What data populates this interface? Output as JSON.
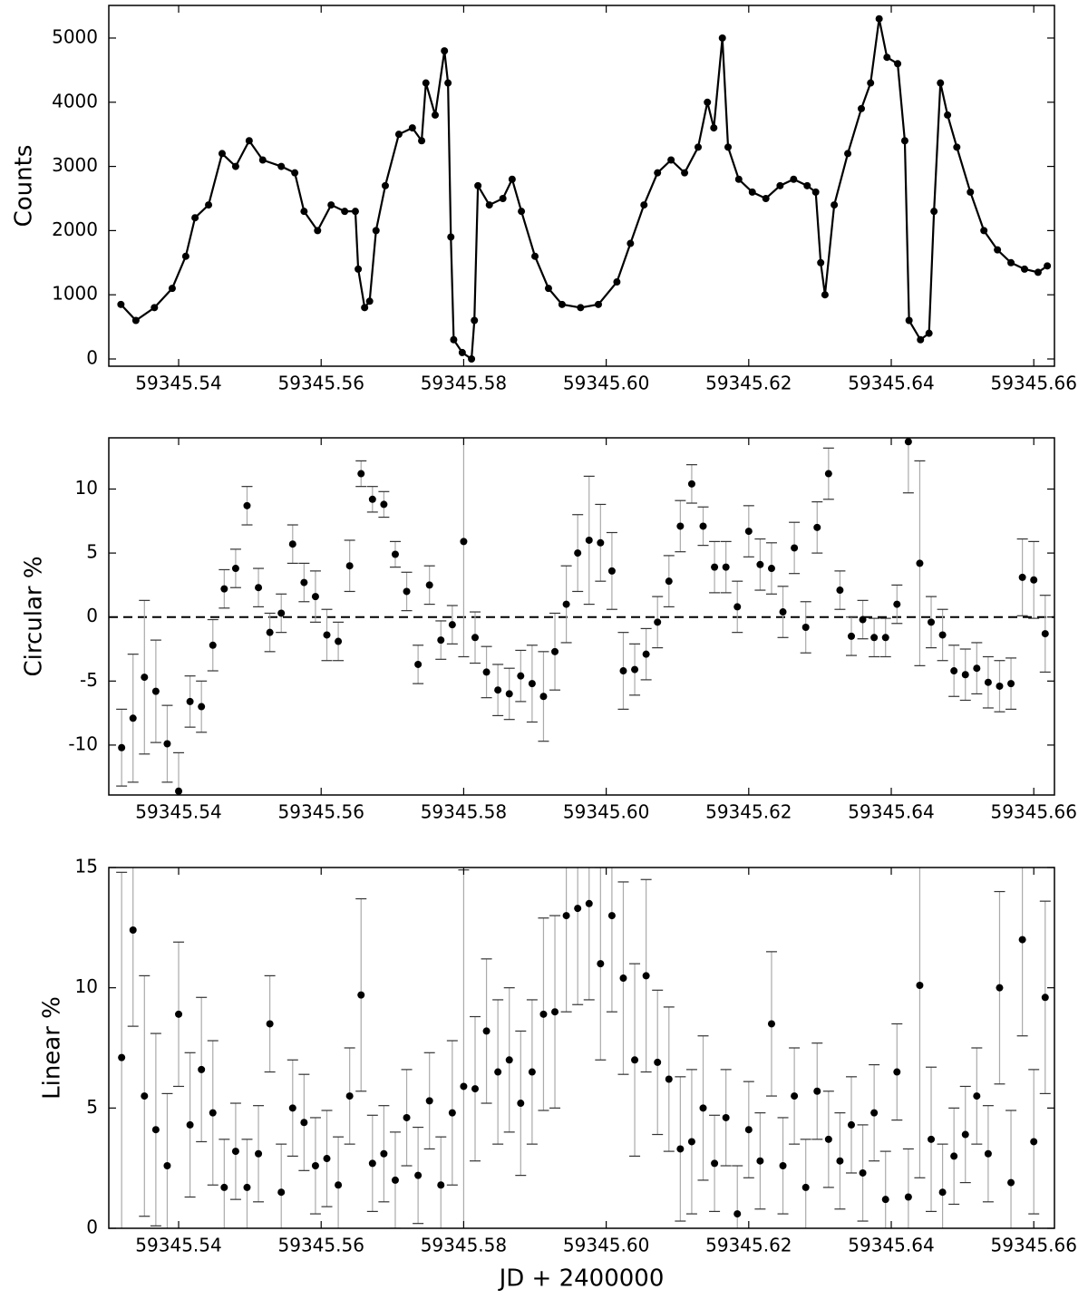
{
  "chart_data": [
    {
      "type": "line",
      "ylabel": "Counts",
      "color": "#000000",
      "x": [
        59345.5319,
        59345.534,
        59345.5366,
        59345.5391,
        59345.541,
        59345.5423,
        59345.5442,
        59345.5461,
        59345.548,
        59345.5499,
        59345.5518,
        59345.5544,
        59345.5563,
        59345.5576,
        59345.5595,
        59345.5614,
        59345.5633,
        59345.5648,
        59345.5652,
        59345.5661,
        59345.5668,
        59345.5677,
        59345.569,
        59345.5709,
        59345.5728,
        59345.5741,
        59345.5747,
        59345.576,
        59345.5773,
        59345.5778,
        59345.5782,
        59345.5786,
        59345.5798,
        59345.5811,
        59345.5815,
        59345.582,
        59345.5836,
        59345.5855,
        59345.5868,
        59345.5881,
        59345.59,
        59345.5919,
        59345.5938,
        59345.5964,
        59345.5989,
        59345.6015,
        59345.6034,
        59345.6053,
        59345.6072,
        59345.6091,
        59345.611,
        59345.6129,
        59345.6142,
        59345.6151,
        59345.6163,
        59345.6171,
        59345.6186,
        59345.6205,
        59345.6224,
        59345.6244,
        59345.6263,
        59345.6282,
        59345.6294,
        59345.6301,
        59345.6307,
        59345.632,
        59345.6339,
        59345.6358,
        59345.6371,
        59345.6383,
        59345.6394,
        59345.6409,
        59345.6419,
        59345.6425,
        59345.6441,
        59345.6453,
        59345.646,
        59345.6469,
        59345.6479,
        59345.6492,
        59345.6511,
        59345.653,
        59345.6549,
        59345.6568,
        59345.6587,
        59345.6606,
        59345.6619
      ],
      "values": [
        850,
        600,
        800,
        1100,
        1600,
        2200,
        2400,
        3200,
        3000,
        3400,
        3100,
        3000,
        2900,
        2300,
        2000,
        2400,
        2300,
        2300,
        1400,
        800,
        900,
        2000,
        2700,
        3500,
        3600,
        3400,
        4300,
        3800,
        4800,
        4300,
        1900,
        300,
        100,
        0,
        600,
        2700,
        2400,
        2500,
        2800,
        2300,
        1600,
        1100,
        850,
        800,
        850,
        1200,
        1800,
        2400,
        2900,
        3100,
        2900,
        3300,
        4000,
        3600,
        5000,
        3300,
        2800,
        2600,
        2500,
        2700,
        2800,
        2700,
        2600,
        1500,
        1000,
        2400,
        3200,
        3900,
        4300,
        5300,
        4700,
        4600,
        3400,
        600,
        300,
        400,
        2300,
        4300,
        3800,
        3300,
        2600,
        2000,
        1700,
        1500,
        1400,
        1350,
        1450
      ],
      "xlim": [
        59345.5302,
        59345.6629
      ],
      "xticks": [
        59345.54,
        59345.56,
        59345.58,
        {
          "value": 59345.6,
          "label": "59345.60"
        },
        59345.62,
        59345.64,
        59345.66
      ],
      "ylim": [
        -113,
        5508
      ],
      "yticks": [
        0,
        1000,
        2000,
        3000,
        4000,
        5000
      ]
    },
    {
      "type": "errorbar",
      "ylabel": "Circular %",
      "color": "#000000",
      "error_color": "#aaaaaa",
      "hline": 0,
      "x": [
        59345.532,
        59345.5336,
        59345.5352,
        59345.5368,
        59345.5384,
        59345.54,
        59345.5416,
        59345.5432,
        59345.5448,
        59345.5464,
        59345.548,
        59345.5496,
        59345.5512,
        59345.5528,
        59345.5544,
        59345.556,
        59345.5576,
        59345.5592,
        59345.5608,
        59345.5624,
        59345.564,
        59345.5656,
        59345.5672,
        59345.5688,
        59345.5704,
        59345.572,
        59345.5736,
        59345.5752,
        59345.5768,
        59345.5784,
        59345.58,
        59345.5816,
        59345.5832,
        59345.5848,
        59345.5864,
        59345.588,
        59345.5896,
        59345.5912,
        59345.5928,
        59345.5944,
        59345.596,
        59345.5976,
        59345.5992,
        59345.6008,
        59345.6024,
        59345.604,
        59345.6056,
        59345.6072,
        59345.6088,
        59345.6104,
        59345.612,
        59345.6136,
        59345.6152,
        59345.6168,
        59345.6184,
        59345.62,
        59345.6216,
        59345.6232,
        59345.6248,
        59345.6264,
        59345.628,
        59345.6296,
        59345.6312,
        59345.6328,
        59345.6344,
        59345.636,
        59345.6376,
        59345.6392,
        59345.6408,
        59345.6424,
        59345.644,
        59345.6456,
        59345.6472,
        59345.6488,
        59345.6504,
        59345.652,
        59345.6536,
        59345.6552,
        59345.6568,
        59345.6584,
        59345.66,
        59345.6616
      ],
      "values": [
        -10.2,
        -7.9,
        -4.7,
        -5.8,
        -9.9,
        -13.6,
        -6.6,
        -7.0,
        -2.2,
        2.2,
        3.8,
        8.7,
        2.3,
        -1.2,
        0.3,
        5.7,
        2.7,
        1.6,
        -1.4,
        -1.9,
        4.0,
        11.2,
        9.2,
        8.8,
        4.9,
        2.0,
        -3.7,
        2.5,
        -1.8,
        -0.6,
        5.9,
        -1.6,
        -4.3,
        -5.7,
        -6.0,
        -4.6,
        -5.2,
        -6.2,
        -2.7,
        1.0,
        5.0,
        6.0,
        5.8,
        3.6,
        -4.2,
        -4.1,
        -2.9,
        -0.4,
        2.8,
        7.1,
        10.4,
        7.1,
        3.9,
        3.9,
        0.8,
        6.7,
        4.1,
        3.8,
        0.4,
        5.4,
        -0.8,
        7.0,
        11.2,
        2.1,
        -1.5,
        -0.2,
        -1.6,
        -1.6,
        1.0,
        13.7,
        4.2,
        -0.4,
        -1.4,
        -4.2,
        -4.5,
        -4.0,
        -5.1,
        -5.4,
        -5.2,
        3.1,
        2.9,
        -1.3
      ],
      "errors": [
        3,
        5,
        6,
        4,
        3,
        3,
        2,
        2,
        2,
        1.5,
        1.5,
        1.5,
        1.5,
        1.5,
        1.5,
        1.5,
        1.5,
        2,
        2,
        1.5,
        2,
        1,
        1,
        1,
        1,
        1.5,
        1.5,
        1.5,
        1.5,
        1.5,
        9,
        2,
        2,
        2,
        2,
        2,
        3,
        3.5,
        3,
        3,
        3,
        5,
        3,
        3,
        3,
        2,
        2,
        2,
        2,
        2,
        1.5,
        1.5,
        2,
        2,
        2,
        2,
        2,
        2,
        2,
        2,
        2,
        2,
        2,
        1.5,
        1.5,
        1.5,
        1.5,
        1.5,
        1.5,
        4,
        8,
        2,
        2,
        2,
        2,
        2,
        2,
        2,
        2,
        3,
        3,
        3
      ],
      "xlim": [
        59345.5302,
        59345.6629
      ],
      "xticks": [
        59345.54,
        59345.56,
        59345.58,
        {
          "value": 59345.6,
          "label": "59345.60"
        },
        59345.62,
        59345.64,
        59345.66
      ],
      "ylim": [
        -13.9,
        14.0
      ],
      "yticks": [
        -10,
        -5,
        0,
        5,
        10
      ]
    },
    {
      "type": "errorbar",
      "ylabel": "Linear %",
      "xlabel": "JD + 2400000",
      "color": "#000000",
      "error_color": "#aaaaaa",
      "x": [
        59345.532,
        59345.5336,
        59345.5352,
        59345.5368,
        59345.5384,
        59345.54,
        59345.5416,
        59345.5432,
        59345.5448,
        59345.5464,
        59345.548,
        59345.5496,
        59345.5512,
        59345.5528,
        59345.5544,
        59345.556,
        59345.5576,
        59345.5592,
        59345.5608,
        59345.5624,
        59345.564,
        59345.5656,
        59345.5672,
        59345.5688,
        59345.5704,
        59345.572,
        59345.5736,
        59345.5752,
        59345.5768,
        59345.5784,
        59345.58,
        59345.5816,
        59345.5832,
        59345.5848,
        59345.5864,
        59345.588,
        59345.5896,
        59345.5912,
        59345.5928,
        59345.5944,
        59345.596,
        59345.5976,
        59345.5992,
        59345.6008,
        59345.6024,
        59345.604,
        59345.6056,
        59345.6072,
        59345.6088,
        59345.6104,
        59345.612,
        59345.6136,
        59345.6152,
        59345.6168,
        59345.6184,
        59345.62,
        59345.6216,
        59345.6232,
        59345.6248,
        59345.6264,
        59345.628,
        59345.6296,
        59345.6312,
        59345.6328,
        59345.6344,
        59345.636,
        59345.6376,
        59345.6392,
        59345.6408,
        59345.6424,
        59345.644,
        59345.6456,
        59345.6472,
        59345.6488,
        59345.6504,
        59345.652,
        59345.6536,
        59345.6552,
        59345.6568,
        59345.6584,
        59345.66,
        59345.6616
      ],
      "values": [
        7.1,
        12.4,
        5.5,
        4.1,
        2.6,
        8.9,
        4.3,
        6.6,
        4.8,
        1.7,
        3.2,
        1.7,
        3.1,
        8.5,
        1.5,
        5.0,
        4.4,
        2.6,
        2.9,
        1.8,
        5.5,
        9.7,
        2.7,
        3.1,
        2.0,
        4.6,
        2.2,
        5.3,
        1.8,
        4.8,
        5.9,
        5.8,
        8.2,
        6.5,
        7.0,
        5.2,
        6.5,
        8.9,
        9.0,
        13.0,
        13.3,
        13.5,
        11.0,
        13.0,
        10.4,
        7.0,
        10.5,
        6.9,
        6.2,
        3.3,
        3.6,
        5.0,
        2.7,
        4.6,
        0.6,
        4.1,
        2.8,
        8.5,
        2.6,
        5.5,
        1.7,
        5.7,
        3.7,
        2.8,
        4.3,
        2.3,
        4.8,
        1.2,
        6.5,
        1.3,
        10.1,
        3.7,
        1.5,
        3.0,
        3.9,
        5.5,
        3.1,
        10.0,
        1.9,
        12.0,
        3.6,
        9.6
      ],
      "errors": [
        7.7,
        4,
        5,
        4,
        3,
        3,
        3,
        3,
        3,
        2,
        2,
        2,
        2,
        2,
        2,
        2,
        2,
        2,
        2,
        2,
        2,
        4,
        2,
        2,
        2,
        2,
        2,
        2,
        2,
        3,
        9,
        3,
        3,
        3,
        3,
        3,
        3,
        4,
        4,
        4,
        4,
        4,
        4,
        4,
        4,
        4,
        4,
        3,
        3,
        3,
        3,
        3,
        2,
        2,
        2,
        2,
        2,
        3,
        2,
        2,
        2,
        2,
        2,
        2,
        2,
        2,
        2,
        2,
        2,
        2,
        8,
        3,
        2,
        2,
        2,
        2,
        2,
        4,
        3,
        4,
        3,
        4
      ],
      "xlim": [
        59345.5302,
        59345.6629
      ],
      "xticks": [
        59345.54,
        59345.56,
        59345.58,
        {
          "value": 59345.6,
          "label": "59345.60"
        },
        59345.62,
        59345.64,
        59345.66
      ],
      "ylim": [
        0,
        15
      ],
      "yticks": [
        0,
        5,
        10,
        15
      ]
    }
  ]
}
